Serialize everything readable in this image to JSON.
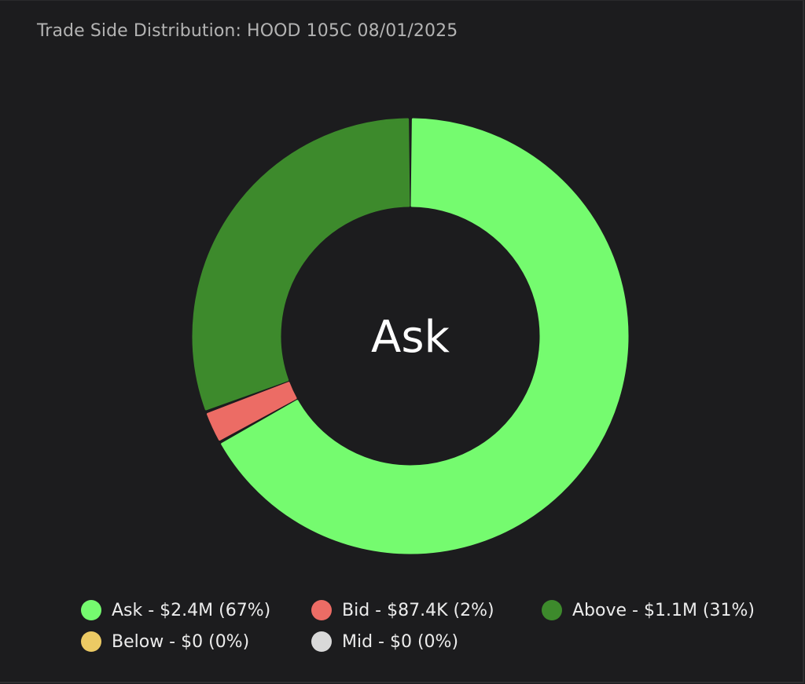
{
  "chart_data": {
    "type": "pie",
    "variant": "donut",
    "title": "Trade Side Distribution: HOOD 105C 08/01/2025",
    "center_label": "Ask",
    "legend_position": "bottom",
    "slices": [
      {
        "name": "Ask",
        "value_text": "$2.4M",
        "percent_text": "67%",
        "value": 2400000,
        "percent": 67,
        "color": "#75fb6f"
      },
      {
        "name": "Bid",
        "value_text": "$87.4K",
        "percent_text": "2%",
        "value": 87400,
        "percent": 2,
        "color": "#ec6c65"
      },
      {
        "name": "Above",
        "value_text": "$1.1M",
        "percent_text": "31%",
        "value": 1100000,
        "percent": 31,
        "color": "#3d8a2c"
      },
      {
        "name": "Below",
        "value_text": "$0",
        "percent_text": "0%",
        "value": 0,
        "percent": 0,
        "color": "#ecca64"
      },
      {
        "name": "Mid",
        "value_text": "$0",
        "percent_text": "0%",
        "value": 0,
        "percent": 0,
        "color": "#d9d9d9"
      }
    ]
  },
  "legend": {
    "items": [
      {
        "label": "Ask - $2.4M (67%)",
        "color": "#75fb6f"
      },
      {
        "label": "Bid - $87.4K (2%)",
        "color": "#ec6c65"
      },
      {
        "label": "Above - $1.1M (31%)",
        "color": "#3d8a2c"
      },
      {
        "label": "Below - $0 (0%)",
        "color": "#ecca64"
      },
      {
        "label": "Mid - $0 (0%)",
        "color": "#d9d9d9"
      }
    ]
  },
  "colors": {
    "background": "#1c1c1e",
    "title_text": "#b3b3b3",
    "legend_text": "#ececec",
    "center_text": "#ffffff"
  }
}
